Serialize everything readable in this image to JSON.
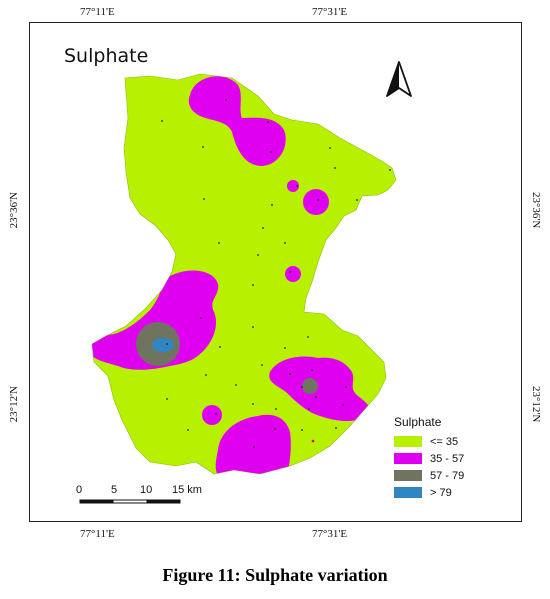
{
  "map": {
    "title": "Sulphate",
    "coords": {
      "top_left": "77°11'E",
      "top_right": "77°31'E",
      "bottom_left": "77°11'E",
      "bottom_right": "77°31'E",
      "left_upper": "23°36'N",
      "left_lower": "23°12'N",
      "right_upper": "23°36'N",
      "right_lower": "23°12'N"
    },
    "legend": {
      "title": "Sulphate",
      "items": [
        {
          "label": "<= 35",
          "color": "#b7f000"
        },
        {
          "label": "35 - 57",
          "color": "#e000f0"
        },
        {
          "label": "57 - 79",
          "color": "#6e7460"
        },
        {
          "label": "> 79",
          "color": "#2f86c2"
        }
      ]
    },
    "scale_bar": {
      "ticks": [
        "0",
        "5",
        "10",
        "15 km"
      ]
    },
    "north_arrow": "north-arrow-icon"
  },
  "caption": "Figure 11: Sulphate variation"
}
